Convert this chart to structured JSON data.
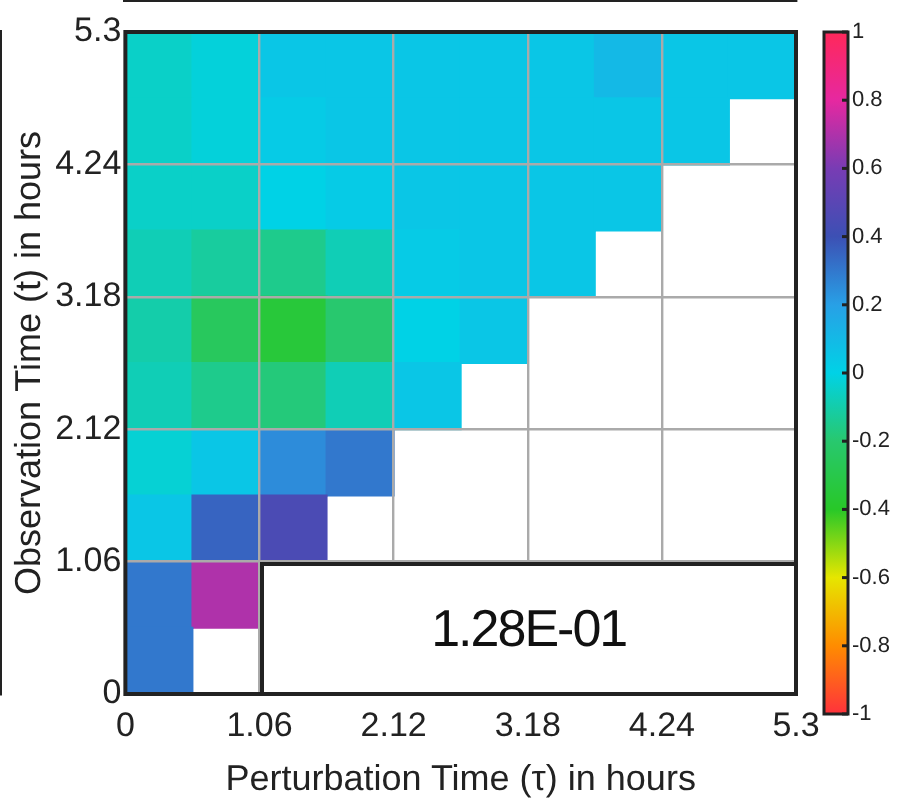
{
  "chart_data": {
    "type": "heatmap",
    "xlabel": "Perturbation Time (τ) in hours",
    "ylabel": "Observation Time (t) in hours",
    "xlim": [
      0,
      5.3
    ],
    "ylim": [
      0,
      5.3
    ],
    "xticks": [
      0,
      1.06,
      2.12,
      3.18,
      4.24,
      5.3
    ],
    "yticks": [
      0,
      1.06,
      2.12,
      3.18,
      4.24,
      5.3
    ],
    "x": [
      0.265,
      0.795,
      1.325,
      1.855,
      2.385,
      2.915,
      3.445,
      3.975,
      4.505,
      5.035
    ],
    "y": [
      5.035,
      4.505,
      3.975,
      3.445,
      2.915,
      2.385,
      1.855,
      1.325,
      0.795,
      0.265
    ],
    "cells": [
      [
        -0.05,
        -0.02,
        0.05,
        0.05,
        0.05,
        0.05,
        0.05,
        0.1,
        0.05,
        0.05
      ],
      [
        -0.05,
        -0.02,
        0.03,
        0.05,
        0.05,
        0.05,
        0.05,
        0.05,
        0.05,
        null
      ],
      [
        -0.05,
        -0.05,
        0,
        0.03,
        0.05,
        0.05,
        0.05,
        0.05,
        null,
        null
      ],
      [
        -0.08,
        -0.12,
        -0.15,
        -0.08,
        0.03,
        0.05,
        0.05,
        null,
        null,
        null
      ],
      [
        -0.1,
        -0.25,
        -0.35,
        -0.2,
        0,
        0.05,
        null,
        null,
        null,
        null
      ],
      [
        -0.08,
        -0.15,
        -0.18,
        -0.08,
        0.05,
        null,
        null,
        null,
        null,
        null
      ],
      [
        -0.03,
        0.05,
        0.25,
        0.3,
        null,
        null,
        null,
        null,
        null,
        null
      ],
      [
        0.05,
        0.35,
        0.45,
        null,
        null,
        null,
        null,
        null,
        null,
        null
      ],
      [
        0.3,
        0.7,
        null,
        null,
        null,
        null,
        null,
        null,
        null,
        null
      ],
      [
        0.3,
        null,
        null,
        null,
        null,
        null,
        null,
        null,
        null,
        null
      ]
    ],
    "clim": [
      -1,
      1
    ],
    "cticks": [
      1,
      0.8,
      0.6,
      0.4,
      0.2,
      0,
      -0.2,
      -0.4,
      -0.6,
      -0.8,
      -1
    ],
    "grid": true,
    "annotations": [
      "1.28E-01"
    ]
  }
}
